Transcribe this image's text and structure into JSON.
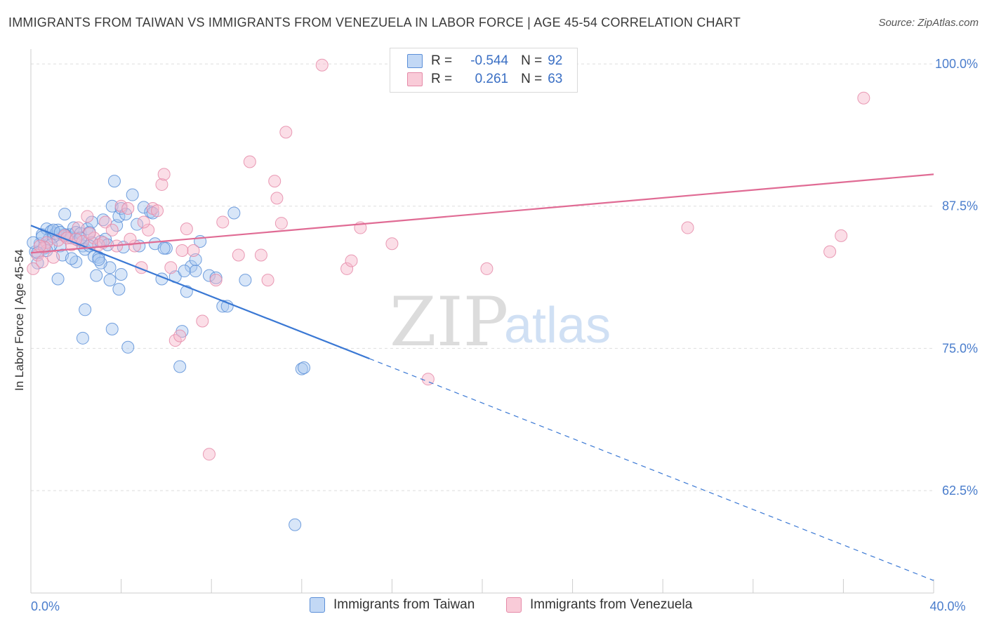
{
  "title": "IMMIGRANTS FROM TAIWAN VS IMMIGRANTS FROM VENEZUELA IN LABOR FORCE | AGE 45-54 CORRELATION CHART",
  "source": "Source: ZipAtlas.com",
  "watermark": {
    "zip": "ZIP",
    "atlas": "atlas"
  },
  "legend": {
    "taiwan": {
      "r_label": "R =",
      "r_value": "-0.544",
      "n_label": "N =",
      "n_value": "92"
    },
    "venezuela": {
      "r_label": "R =",
      "r_value": "0.261",
      "n_label": "N =",
      "n_value": "63"
    }
  },
  "colors": {
    "taiwan_fill": "#a9c8f0",
    "taiwan_stroke": "#5b8fd8",
    "taiwan_line": "#3a78d4",
    "venezuela_fill": "#f7b6c9",
    "venezuela_stroke": "#e58aa8",
    "venezuela_line": "#e06b94",
    "tick_text": "#4a7dcc",
    "grid": "#dddddd"
  },
  "chart_data": {
    "type": "scatter",
    "title": "IMMIGRANTS FROM TAIWAN VS IMMIGRANTS FROM VENEZUELA IN LABOR FORCE | AGE 45-54 CORRELATION CHART",
    "xlabel": "",
    "ylabel": "In Labor Force | Age 45-54",
    "xlim": [
      0,
      40
    ],
    "ylim": [
      53.5,
      101.3
    ],
    "x_tick_labels": [
      {
        "value": 0,
        "label": "0.0%"
      },
      {
        "value": 40,
        "label": "40.0%"
      }
    ],
    "y_ticks": [
      {
        "value": 100,
        "label": "100.0%"
      },
      {
        "value": 87.5,
        "label": "87.5%"
      },
      {
        "value": 75,
        "label": "75.0%"
      },
      {
        "value": 62.5,
        "label": "62.5%"
      }
    ],
    "x_minor_ticks": [
      4,
      8,
      12,
      16,
      20,
      24,
      28,
      32,
      36,
      40
    ],
    "grid": true,
    "legend_placement": "top-center",
    "series": [
      {
        "name": "Immigrants from Taiwan",
        "r": -0.544,
        "n": 92,
        "trend": {
          "x0": 0,
          "y0": 85.8,
          "x1": 15,
          "y1": 74.1,
          "dash_x1": 40,
          "dash_y1": 54.6
        },
        "points": [
          [
            0.2,
            83.5
          ],
          [
            0.3,
            82.5
          ],
          [
            0.4,
            84.2
          ],
          [
            0.5,
            85.0
          ],
          [
            0.6,
            83.8
          ],
          [
            0.7,
            85.5
          ],
          [
            0.8,
            84.6
          ],
          [
            0.9,
            85.3
          ],
          [
            1.0,
            84.8
          ],
          [
            1.1,
            85.1
          ],
          [
            1.2,
            85.4
          ],
          [
            1.3,
            84.0
          ],
          [
            1.4,
            83.2
          ],
          [
            1.5,
            86.8
          ],
          [
            1.6,
            84.9
          ],
          [
            1.7,
            85.0
          ],
          [
            1.8,
            84.7
          ],
          [
            1.9,
            85.6
          ],
          [
            2.0,
            85.2
          ],
          [
            2.1,
            84.5
          ],
          [
            2.2,
            85.1
          ],
          [
            2.3,
            84.0
          ],
          [
            2.4,
            83.7
          ],
          [
            2.5,
            85.5
          ],
          [
            2.6,
            85.2
          ],
          [
            2.7,
            84.3
          ],
          [
            2.8,
            83.1
          ],
          [
            2.9,
            81.4
          ],
          [
            3.0,
            83.0
          ],
          [
            3.1,
            84.4
          ],
          [
            3.2,
            86.3
          ],
          [
            3.3,
            84.6
          ],
          [
            3.4,
            84.1
          ],
          [
            3.5,
            82.1
          ],
          [
            3.6,
            87.5
          ],
          [
            3.7,
            89.7
          ],
          [
            3.8,
            85.8
          ],
          [
            3.9,
            86.6
          ],
          [
            4.0,
            87.3
          ],
          [
            4.2,
            86.8
          ],
          [
            4.5,
            88.5
          ],
          [
            4.7,
            85.9
          ],
          [
            5.0,
            87.4
          ],
          [
            5.3,
            87.0
          ],
          [
            5.5,
            84.2
          ],
          [
            5.8,
            81.1
          ],
          [
            6.0,
            83.8
          ],
          [
            6.4,
            81.3
          ],
          [
            6.7,
            76.5
          ],
          [
            6.9,
            80.0
          ],
          [
            7.1,
            82.2
          ],
          [
            7.3,
            81.8
          ],
          [
            7.5,
            84.4
          ],
          [
            7.9,
            81.4
          ],
          [
            8.2,
            81.2
          ],
          [
            8.5,
            78.7
          ],
          [
            8.7,
            78.7
          ],
          [
            9.0,
            86.9
          ],
          [
            9.5,
            81.0
          ],
          [
            12.0,
            73.2
          ],
          [
            12.1,
            73.3
          ],
          [
            11.7,
            59.5
          ],
          [
            1.2,
            81.1
          ],
          [
            2.4,
            78.4
          ],
          [
            2.3,
            75.9
          ],
          [
            3.6,
            76.7
          ],
          [
            4.3,
            75.1
          ],
          [
            6.6,
            73.4
          ],
          [
            3.5,
            81.0
          ],
          [
            4.0,
            81.5
          ],
          [
            2.0,
            82.6
          ],
          [
            3.1,
            82.5
          ],
          [
            1.8,
            82.9
          ],
          [
            0.9,
            84.1
          ],
          [
            2.7,
            86.1
          ],
          [
            1.5,
            85.0
          ],
          [
            2.2,
            84.7
          ],
          [
            0.5,
            84.8
          ],
          [
            0.7,
            83.6
          ],
          [
            3.9,
            80.2
          ],
          [
            5.4,
            86.9
          ],
          [
            6.8,
            81.8
          ],
          [
            0.1,
            84.3
          ],
          [
            0.3,
            83.4
          ],
          [
            1.0,
            85.4
          ],
          [
            1.3,
            85.2
          ],
          [
            2.6,
            84.0
          ],
          [
            3.0,
            82.8
          ],
          [
            4.1,
            83.9
          ],
          [
            7.3,
            82.8
          ],
          [
            4.8,
            84.0
          ],
          [
            5.9,
            83.8
          ]
        ]
      },
      {
        "name": "Immigrants from Venezuela",
        "r": 0.261,
        "n": 63,
        "trend": {
          "x0": 0,
          "y0": 83.4,
          "x1": 40,
          "y1": 90.3
        },
        "points": [
          [
            0.1,
            82.0
          ],
          [
            0.3,
            83.2
          ],
          [
            0.5,
            82.6
          ],
          [
            0.7,
            84.3
          ],
          [
            1.0,
            83.0
          ],
          [
            1.2,
            84.5
          ],
          [
            1.5,
            84.9
          ],
          [
            1.8,
            84.1
          ],
          [
            2.1,
            85.6
          ],
          [
            2.3,
            84.4
          ],
          [
            2.5,
            86.6
          ],
          [
            2.8,
            84.7
          ],
          [
            3.0,
            84.1
          ],
          [
            3.3,
            86.1
          ],
          [
            3.6,
            85.4
          ],
          [
            3.8,
            84.0
          ],
          [
            4.0,
            87.5
          ],
          [
            4.3,
            87.3
          ],
          [
            4.6,
            84.0
          ],
          [
            4.9,
            82.1
          ],
          [
            5.2,
            85.4
          ],
          [
            5.4,
            87.3
          ],
          [
            5.8,
            89.4
          ],
          [
            5.9,
            90.3
          ],
          [
            6.2,
            82.1
          ],
          [
            6.4,
            75.7
          ],
          [
            6.6,
            76.1
          ],
          [
            6.9,
            85.5
          ],
          [
            7.2,
            83.6
          ],
          [
            7.6,
            77.4
          ],
          [
            7.9,
            65.7
          ],
          [
            8.2,
            81.0
          ],
          [
            8.5,
            86.1
          ],
          [
            9.2,
            83.2
          ],
          [
            9.7,
            91.4
          ],
          [
            10.2,
            83.2
          ],
          [
            10.5,
            81.0
          ],
          [
            10.8,
            89.7
          ],
          [
            10.9,
            88.2
          ],
          [
            11.1,
            86.0
          ],
          [
            11.3,
            94.0
          ],
          [
            12.9,
            99.9
          ],
          [
            14.0,
            82.0
          ],
          [
            14.2,
            82.7
          ],
          [
            14.6,
            85.6
          ],
          [
            16.0,
            84.2
          ],
          [
            17.6,
            72.3
          ],
          [
            20.2,
            82.0
          ],
          [
            21.5,
            100.2
          ],
          [
            29.1,
            85.6
          ],
          [
            35.4,
            83.5
          ],
          [
            35.9,
            84.9
          ],
          [
            36.9,
            97.0
          ],
          [
            0.6,
            83.9
          ],
          [
            1.6,
            84.7
          ],
          [
            2.6,
            85.1
          ],
          [
            3.2,
            84.3
          ],
          [
            4.4,
            84.6
          ],
          [
            5.0,
            86.1
          ],
          [
            5.6,
            87.1
          ],
          [
            6.7,
            83.6
          ],
          [
            0.4,
            84.0
          ],
          [
            2.0,
            84.6
          ]
        ]
      }
    ]
  },
  "bottom_legend": {
    "taiwan": "Immigrants from Taiwan",
    "venezuela": "Immigrants from Venezuela"
  }
}
